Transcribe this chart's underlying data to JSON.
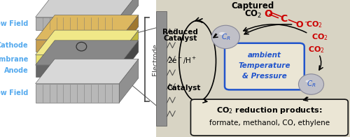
{
  "fig_width": 5.0,
  "fig_height": 1.96,
  "dpi": 100,
  "bg_color": "#d8d4c4",
  "left_panel": {
    "label_color": "#55aaee",
    "electrode_label": "Electrode",
    "electrode_color": "#444444",
    "layers": [
      {
        "label": "Flow Field",
        "color_face": "#b0b0b0",
        "color_top": "#d0d0d0",
        "color_side": "#888888",
        "ridged": true
      },
      {
        "label": "Cathode",
        "color_face": "#c8a050",
        "color_top": "#ddb860",
        "color_side": "#a07830",
        "ridged": false
      },
      {
        "label": "Membrane",
        "color_face": "#e8e070",
        "color_top": "#f0e888",
        "color_side": "#c0b840",
        "ridged": false
      },
      {
        "label": "Anode",
        "color_face": "#686868",
        "color_top": "#888888",
        "color_side": "#484848",
        "ridged": false
      },
      {
        "label": "Flow Field",
        "color_face": "#b8b8b8",
        "color_top": "#d8d8d8",
        "color_side": "#909090",
        "ridged": true
      }
    ]
  },
  "right_panel": {
    "co2_color": "#cc0000",
    "blue_color": "#2255cc",
    "arrow_color": "#111111",
    "box_bg": "#ebe6d5",
    "ambient_border": "#2255cc",
    "products_border": "#111111"
  }
}
